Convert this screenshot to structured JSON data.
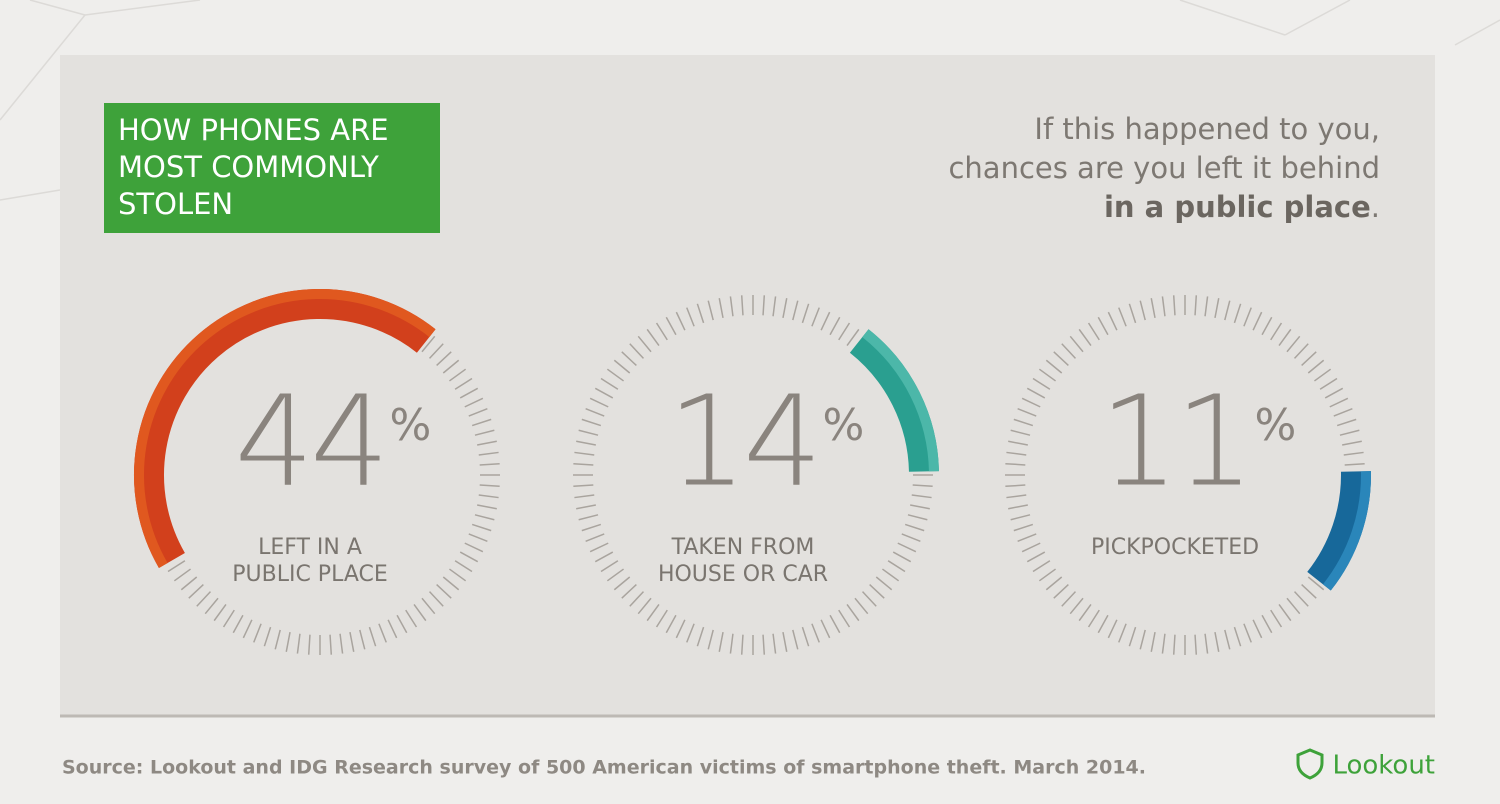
{
  "header": {
    "title_lines": [
      "HOW PHONES ARE",
      "MOST COMMONLY",
      "STOLEN"
    ],
    "subtitle_lines": [
      "If this happened to you,",
      "chances are you left it behind"
    ],
    "subtitle_emphasis": "in a public place",
    "subtitle_end": "."
  },
  "chart_data": [
    {
      "type": "gauge",
      "value": 44,
      "unit": "%",
      "label_lines": [
        "LEFT IN A",
        "PUBLIC PLACE"
      ],
      "color": "#d2401c",
      "light_color": "#e0581f",
      "ylim": [
        0,
        100
      ]
    },
    {
      "type": "gauge",
      "value": 14,
      "unit": "%",
      "label_lines": [
        "TAKEN FROM",
        "HOUSE OR CAR"
      ],
      "color": "#2a9f90",
      "light_color": "#4cb7a9",
      "ylim": [
        0,
        100
      ]
    },
    {
      "type": "gauge",
      "value": 11,
      "unit": "%",
      "label_lines": [
        "PICKPOCKETED"
      ],
      "color": "#17689a",
      "light_color": "#2a86ba",
      "ylim": [
        0,
        100
      ]
    }
  ],
  "footer": {
    "source": "Source: Lookout and IDG Research survey of 500 American victims of smartphone theft. March 2014.",
    "logo": "Lookout"
  }
}
